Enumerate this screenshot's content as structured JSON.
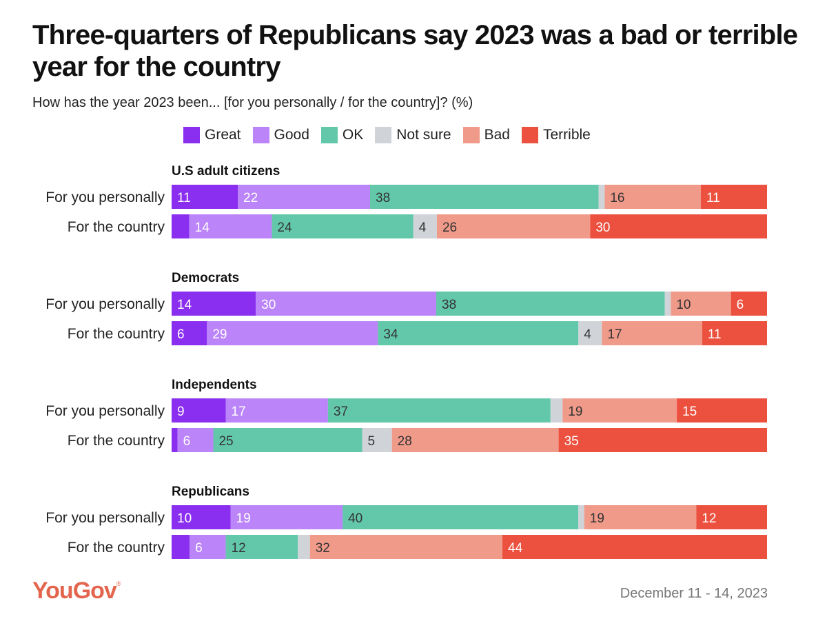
{
  "header": {
    "title": "Three-quarters of Republicans say 2023 was a bad or terrible year for the country",
    "subtitle": "How has the year 2023 been... [for you personally / for the country]? (%)"
  },
  "footer": {
    "brand": "YouGov",
    "brand_mark": "®",
    "date": "December 11 - 14, 2023"
  },
  "chart_data": {
    "type": "bar",
    "orientation": "horizontal",
    "stacked": true,
    "xlim": [
      0,
      100
    ],
    "legend_position": "top",
    "categories": [
      "Great",
      "Good",
      "OK",
      "Not sure",
      "Bad",
      "Terrible"
    ],
    "colors": [
      "#8a2ef0",
      "#bb84f8",
      "#63c8a9",
      "#d0d3d8",
      "#f09a8a",
      "#ec503e"
    ],
    "groups": [
      {
        "name": "U.S adult citizens",
        "rows": [
          {
            "label": "For you personally",
            "values": [
              11,
              22,
              38,
              1,
              16,
              11
            ],
            "labels": [
              "11",
              "22",
              "38",
              "",
              "16",
              "11"
            ]
          },
          {
            "label": "For the country",
            "values": [
              3,
              14,
              24,
              4,
              26,
              30
            ],
            "labels": [
              "",
              "14",
              "24",
              "4",
              "26",
              "30"
            ]
          }
        ]
      },
      {
        "name": "Democrats",
        "rows": [
          {
            "label": "For you personally",
            "values": [
              14,
              30,
              38,
              1,
              10,
              6
            ],
            "labels": [
              "14",
              "30",
              "38",
              "",
              "10",
              "6"
            ]
          },
          {
            "label": "For the country",
            "values": [
              6,
              29,
              34,
              4,
              17,
              11
            ],
            "labels": [
              "6",
              "29",
              "34",
              "4",
              "17",
              "11"
            ]
          }
        ]
      },
      {
        "name": "Independents",
        "rows": [
          {
            "label": "For you personally",
            "values": [
              9,
              17,
              37,
              2,
              19,
              15
            ],
            "labels": [
              "9",
              "17",
              "37",
              "",
              "19",
              "15"
            ]
          },
          {
            "label": "For the country",
            "values": [
              1,
              6,
              25,
              5,
              28,
              35
            ],
            "labels": [
              "",
              "6",
              "25",
              "5",
              "28",
              "35"
            ]
          }
        ]
      },
      {
        "name": "Republicans",
        "rows": [
          {
            "label": "For you personally",
            "values": [
              10,
              19,
              40,
              1,
              19,
              12
            ],
            "labels": [
              "10",
              "19",
              "40",
              "",
              "19",
              "12"
            ]
          },
          {
            "label": "For the country",
            "values": [
              3,
              6,
              12,
              2,
              32,
              44
            ],
            "labels": [
              "",
              "6",
              "12",
              "",
              "32",
              "44"
            ]
          }
        ]
      }
    ]
  }
}
